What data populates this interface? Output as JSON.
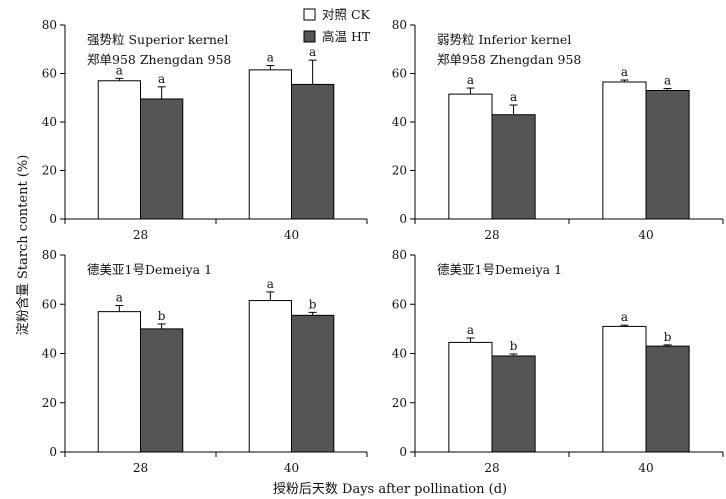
{
  "figure": {
    "y_axis_label": "淀粉含量 Starch content (%)",
    "x_axis_label": "授粉后天数 Days after pollination (d)"
  },
  "legend": [
    {
      "label": "对照 CK",
      "color": "#ffffff"
    },
    {
      "label": "高温 HT",
      "color": "#555555"
    }
  ],
  "chart_data": [
    {
      "type": "bar",
      "annotation": [
        "强势粒 Superior kernel",
        "郑单958 Zhengdan 958"
      ],
      "categories": [
        "28",
        "40"
      ],
      "ylim": [
        0,
        80
      ],
      "yticks": [
        0,
        20,
        40,
        60,
        80
      ],
      "series": [
        {
          "name": "对照 CK",
          "values": [
            57,
            61.5
          ],
          "errors": [
            1,
            1.8
          ],
          "labels": [
            "a",
            "a"
          ]
        },
        {
          "name": "高温 HT",
          "values": [
            49.5,
            55.5
          ],
          "errors": [
            5,
            10
          ],
          "labels": [
            "a",
            "a"
          ]
        }
      ]
    },
    {
      "type": "bar",
      "annotation": [
        "弱势粒 Inferior kernel",
        "郑单958 Zhengdan 958"
      ],
      "categories": [
        "28",
        "40"
      ],
      "ylim": [
        0,
        80
      ],
      "yticks": [
        0,
        20,
        40,
        60,
        80
      ],
      "series": [
        {
          "name": "对照 CK",
          "values": [
            51.5,
            56.5
          ],
          "errors": [
            2.5,
            0.8
          ],
          "labels": [
            "a",
            "a"
          ]
        },
        {
          "name": "高温 HT",
          "values": [
            43,
            53
          ],
          "errors": [
            4,
            0.8
          ],
          "labels": [
            "a",
            "a"
          ]
        }
      ]
    },
    {
      "type": "bar",
      "annotation": [
        "德美亚1号Demeiya 1"
      ],
      "categories": [
        "28",
        "40"
      ],
      "ylim": [
        0,
        80
      ],
      "yticks": [
        0,
        20,
        40,
        60,
        80
      ],
      "series": [
        {
          "name": "对照 CK",
          "values": [
            57,
            61.5
          ],
          "errors": [
            2.5,
            3.5
          ],
          "labels": [
            "a",
            "a"
          ]
        },
        {
          "name": "高温 HT",
          "values": [
            50,
            55.5
          ],
          "errors": [
            2,
            1.2
          ],
          "labels": [
            "b",
            "b"
          ]
        }
      ]
    },
    {
      "type": "bar",
      "annotation": [
        "德美亚1号Demeiya 1"
      ],
      "categories": [
        "28",
        "40"
      ],
      "ylim": [
        0,
        80
      ],
      "yticks": [
        0,
        20,
        40,
        60,
        80
      ],
      "series": [
        {
          "name": "对照 CK",
          "values": [
            44.5,
            51
          ],
          "errors": [
            1.8,
            0.5
          ],
          "labels": [
            "a",
            "a"
          ]
        },
        {
          "name": "高温 HT",
          "values": [
            39,
            43
          ],
          "errors": [
            0.8,
            0.5
          ],
          "labels": [
            "b",
            "b"
          ]
        }
      ]
    }
  ]
}
